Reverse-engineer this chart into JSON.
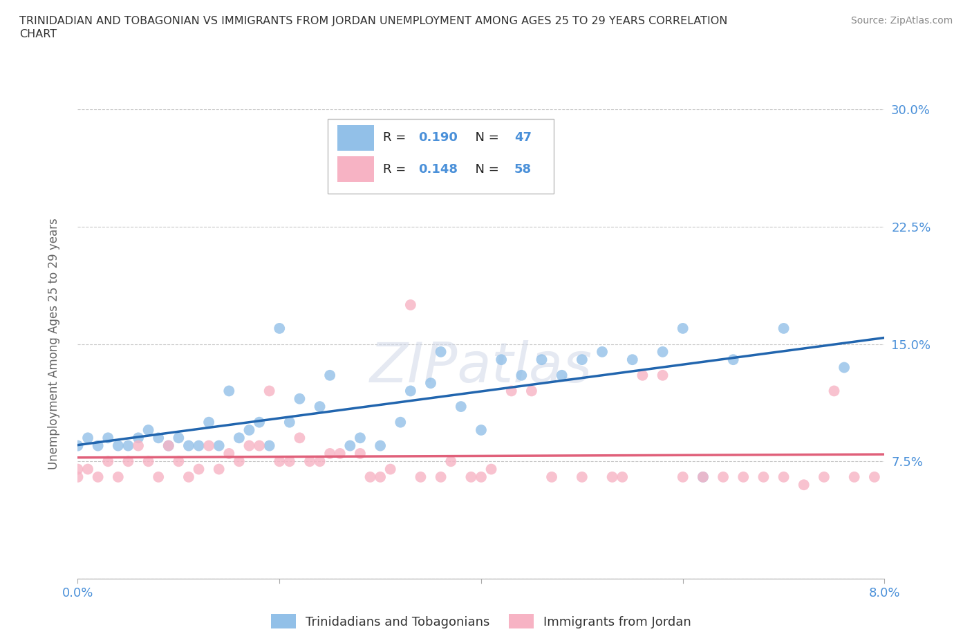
{
  "title_line1": "TRINIDADIAN AND TOBAGONIAN VS IMMIGRANTS FROM JORDAN UNEMPLOYMENT AMONG AGES 25 TO 29 YEARS CORRELATION",
  "title_line2": "CHART",
  "source": "Source: ZipAtlas.com",
  "ylabel": "Unemployment Among Ages 25 to 29 years",
  "xlabel_blue": "Trinidadians and Tobagonians",
  "xlabel_pink": "Immigrants from Jordan",
  "xlim": [
    0.0,
    0.08
  ],
  "ylim": [
    0.0,
    0.3
  ],
  "xtick_vals": [
    0.0,
    0.02,
    0.04,
    0.06,
    0.08
  ],
  "xtick_labels": [
    "0.0%",
    "",
    "",
    "",
    "8.0%"
  ],
  "ytick_vals": [
    0.0,
    0.075,
    0.15,
    0.225,
    0.3
  ],
  "ytick_labels": [
    "",
    "7.5%",
    "15.0%",
    "22.5%",
    "30.0%"
  ],
  "blue_R": 0.19,
  "blue_N": 47,
  "pink_R": 0.148,
  "pink_N": 58,
  "blue_color": "#92c0e8",
  "pink_color": "#f7b3c4",
  "blue_line_color": "#2165ae",
  "pink_line_color": "#e0607a",
  "blue_scatter_x": [
    0.0,
    0.001,
    0.002,
    0.003,
    0.004,
    0.005,
    0.006,
    0.007,
    0.008,
    0.009,
    0.01,
    0.011,
    0.012,
    0.013,
    0.014,
    0.015,
    0.016,
    0.017,
    0.018,
    0.019,
    0.02,
    0.021,
    0.022,
    0.024,
    0.025,
    0.027,
    0.028,
    0.03,
    0.032,
    0.033,
    0.035,
    0.036,
    0.038,
    0.04,
    0.042,
    0.044,
    0.046,
    0.048,
    0.05,
    0.052,
    0.055,
    0.058,
    0.06,
    0.062,
    0.065,
    0.07,
    0.076
  ],
  "blue_scatter_y": [
    0.085,
    0.09,
    0.085,
    0.09,
    0.085,
    0.085,
    0.09,
    0.095,
    0.09,
    0.085,
    0.09,
    0.085,
    0.085,
    0.1,
    0.085,
    0.12,
    0.09,
    0.095,
    0.1,
    0.085,
    0.16,
    0.1,
    0.115,
    0.11,
    0.13,
    0.085,
    0.09,
    0.085,
    0.1,
    0.12,
    0.125,
    0.145,
    0.11,
    0.095,
    0.14,
    0.13,
    0.14,
    0.13,
    0.14,
    0.145,
    0.14,
    0.145,
    0.16,
    0.065,
    0.14,
    0.16,
    0.135
  ],
  "pink_scatter_x": [
    0.0,
    0.0,
    0.001,
    0.002,
    0.003,
    0.004,
    0.005,
    0.006,
    0.007,
    0.008,
    0.009,
    0.01,
    0.011,
    0.012,
    0.013,
    0.014,
    0.015,
    0.016,
    0.017,
    0.018,
    0.019,
    0.02,
    0.021,
    0.022,
    0.023,
    0.024,
    0.025,
    0.026,
    0.028,
    0.029,
    0.03,
    0.031,
    0.033,
    0.034,
    0.036,
    0.037,
    0.039,
    0.04,
    0.041,
    0.043,
    0.045,
    0.047,
    0.05,
    0.053,
    0.054,
    0.056,
    0.058,
    0.06,
    0.062,
    0.064,
    0.066,
    0.068,
    0.07,
    0.072,
    0.074,
    0.075,
    0.077,
    0.079
  ],
  "pink_scatter_y": [
    0.065,
    0.07,
    0.07,
    0.065,
    0.075,
    0.065,
    0.075,
    0.085,
    0.075,
    0.065,
    0.085,
    0.075,
    0.065,
    0.07,
    0.085,
    0.07,
    0.08,
    0.075,
    0.085,
    0.085,
    0.12,
    0.075,
    0.075,
    0.09,
    0.075,
    0.075,
    0.08,
    0.08,
    0.08,
    0.065,
    0.065,
    0.07,
    0.175,
    0.065,
    0.065,
    0.075,
    0.065,
    0.065,
    0.07,
    0.12,
    0.12,
    0.065,
    0.065,
    0.065,
    0.065,
    0.13,
    0.13,
    0.065,
    0.065,
    0.065,
    0.065,
    0.065,
    0.065,
    0.06,
    0.065,
    0.12,
    0.065,
    0.065
  ],
  "watermark": "ZIPatlas",
  "background_color": "#ffffff",
  "grid_color": "#c8c8c8",
  "tick_color": "#4a90d9"
}
